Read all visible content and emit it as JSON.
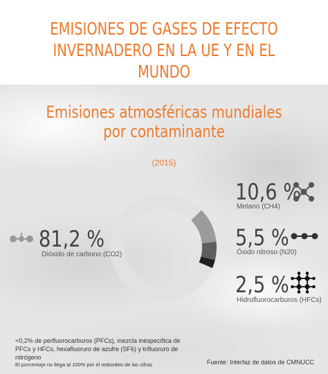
{
  "header": {
    "title": "EMISIONES DE GASES DE EFECTO INVERNADERO EN LA UE Y EN EL MUNDO"
  },
  "chart": {
    "title": "Emisiones atmosféricas mundiales\npor contaminante",
    "year": "(2015)",
    "footnote": "<0,2% de perfluorocarburos (PFCs), mezcla inespecífica de PFCs y HFCs, hexafluoruro de azufre (SF6) y trifluoruro de nitrógeno",
    "note": "El porcentaje no llega al 100% por el redondeo de las cifras",
    "source": "Fuente: Interfaz de datos de CMNUCC"
  },
  "labels": {
    "co2": {
      "pct": "81,2 %",
      "name": "Dióxido de carbono (CO2)",
      "icon": "co2-molecule-icon"
    },
    "ch4": {
      "pct": "10,6 %",
      "name": "Metano (CH4)",
      "icon": "ch4-molecule-icon"
    },
    "n2o": {
      "pct": "5,5 %",
      "name": "Óxido nitroso (N20)",
      "icon": "n2o-molecule-icon"
    },
    "hfc": {
      "pct": "2,5 %",
      "name": "Hidrofluorocarburos (HFCs)",
      "icon": "hfc-molecule-icon"
    }
  },
  "chart_data": {
    "type": "pie",
    "title": "Emisiones atmosféricas mundiales por contaminante",
    "subtitle": "(2015)",
    "categories": [
      "Dióxido de carbono (CO2)",
      "Metano (CH4)",
      "Óxido nitroso (N20)",
      "Hidrofluorocarburos (HFCs)"
    ],
    "values": [
      81.2,
      10.6,
      5.5,
      2.5
    ],
    "unit": "%",
    "colors": [
      "#e2e2e2",
      "#9b9b9b",
      "#5e5e5e",
      "#1f1f1f"
    ]
  }
}
